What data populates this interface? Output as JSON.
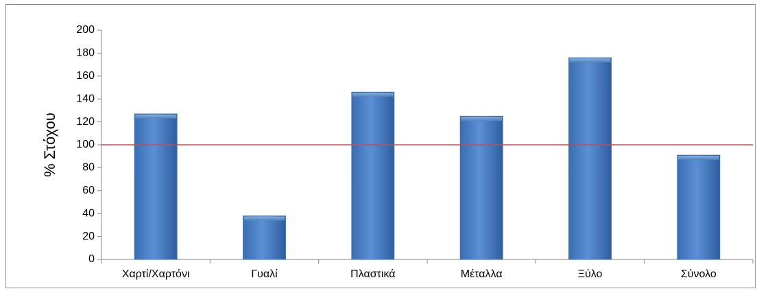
{
  "chart_data": {
    "type": "bar",
    "title": "",
    "xlabel": "",
    "ylabel": "% Στόχου",
    "categories": [
      "Χαρτί/Χαρτόνι",
      "Γυαλί",
      "Πλαστικά",
      "Μέταλλα",
      "Ξύλο",
      "Σύνολο"
    ],
    "values": [
      127,
      38,
      146,
      125,
      176,
      91
    ],
    "ylim": [
      0,
      200
    ],
    "yticks": [
      "0",
      "20",
      "40",
      "60",
      "80",
      "100",
      "120",
      "140",
      "160",
      "180",
      "200"
    ],
    "reference_line": {
      "value": 100,
      "color": "#c0504d"
    },
    "bar_color": "#4f81bd",
    "grid": false,
    "legend": "none"
  }
}
